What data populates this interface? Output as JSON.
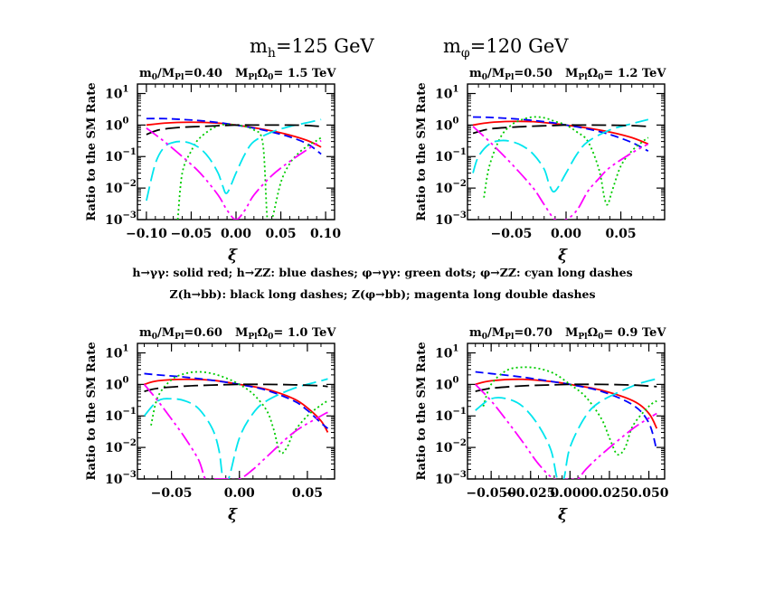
{
  "figure": {
    "title_mh": "m",
    "title_mh_sub": "h",
    "title_mh_val": "=125 GeV",
    "title_mphi": "m",
    "title_mphi_sub": "φ",
    "title_mphi_val": "=120 GeV",
    "legend_line1": "h→γγ: solid red; h→ZZ: blue dashes; φ→γγ: green dots; φ→ZZ: cyan long dashes",
    "legend_line2": "Z(h→bb): black long dashes; Z(φ→bb); magenta long double dashes"
  },
  "series_styles": [
    {
      "key": "h_gg",
      "color": "#ff0000",
      "dash": ""
    },
    {
      "key": "h_ZZ",
      "color": "#0000ff",
      "dash": "9,5"
    },
    {
      "key": "phi_gg",
      "color": "#00cc00",
      "dash": "2,3"
    },
    {
      "key": "phi_ZZ",
      "color": "#00e5ee",
      "dash": "16,6"
    },
    {
      "key": "Z_hbb",
      "color": "#000000",
      "dash": "16,6"
    },
    {
      "key": "Z_phibb",
      "color": "#ff00ff",
      "dash": "16,4,3,4,3,4"
    }
  ],
  "chart_data": [
    {
      "type": "line",
      "log_y": true,
      "title_left_main": "m",
      "title_left_sub": "0",
      "title_left_rest": "/M",
      "title_left_sub2": "Pl",
      "title_left_val": "=0.40",
      "title_right_main": "M",
      "title_right_sub": "Pl",
      "title_right_rest": "Ω",
      "title_right_sub2": "0",
      "title_right_val": "= 1.5 TeV",
      "xlabel": "ξ",
      "ylabel": "Ratio to the SM Rate",
      "xlim": [
        -0.11,
        0.11
      ],
      "ylim": [
        0.001,
        20
      ],
      "xticks": [
        -0.1,
        -0.05,
        0.0,
        0.05,
        0.1
      ],
      "xtick_labels": [
        "−0.10",
        "−0.05",
        "0.00",
        "0.05",
        "0.10"
      ],
      "ytick_exponents": [
        "1",
        "0",
        "−1",
        "−2",
        "−3"
      ],
      "series": [
        {
          "key": "h_gg",
          "x": [
            -0.1,
            -0.08,
            -0.06,
            -0.04,
            -0.02,
            0.0,
            0.02,
            0.04,
            0.06,
            0.08,
            0.095
          ],
          "y": [
            1.0,
            1.15,
            1.22,
            1.22,
            1.15,
            1.0,
            0.82,
            0.65,
            0.48,
            0.32,
            0.2
          ]
        },
        {
          "key": "h_ZZ",
          "x": [
            -0.1,
            -0.08,
            -0.06,
            -0.04,
            -0.02,
            0.0,
            0.02,
            0.04,
            0.06,
            0.08,
            0.095
          ],
          "y": [
            1.6,
            1.6,
            1.5,
            1.38,
            1.2,
            1.0,
            0.8,
            0.6,
            0.42,
            0.25,
            0.12
          ]
        },
        {
          "key": "phi_gg",
          "x": [
            -0.065,
            -0.06,
            -0.05,
            -0.04,
            -0.02,
            0.0,
            0.02,
            0.03,
            0.035,
            0.04,
            0.05,
            0.06,
            0.07,
            0.08,
            0.09,
            0.095
          ],
          "y": [
            0.001,
            0.03,
            0.15,
            0.4,
            0.95,
            1.0,
            0.7,
            0.25,
            0.001,
            0.001,
            0.015,
            0.06,
            0.13,
            0.22,
            0.32,
            0.4
          ]
        },
        {
          "key": "phi_ZZ",
          "x": [
            -0.1,
            -0.09,
            -0.08,
            -0.07,
            -0.06,
            -0.05,
            -0.04,
            -0.03,
            -0.02,
            -0.015,
            -0.01,
            0.0,
            0.01,
            0.02,
            0.04,
            0.06,
            0.08,
            0.095
          ],
          "y": [
            0.004,
            0.06,
            0.2,
            0.28,
            0.3,
            0.26,
            0.18,
            0.09,
            0.03,
            0.012,
            0.007,
            0.03,
            0.12,
            0.3,
            0.6,
            0.9,
            1.2,
            1.5
          ]
        },
        {
          "key": "Z_hbb",
          "x": [
            -0.1,
            -0.09,
            -0.08,
            -0.06,
            -0.04,
            -0.02,
            0.0,
            0.02,
            0.04,
            0.06,
            0.08,
            0.095
          ],
          "y": [
            0.5,
            0.65,
            0.75,
            0.85,
            0.9,
            0.95,
            1.0,
            1.0,
            1.0,
            1.0,
            0.97,
            0.9
          ]
        },
        {
          "key": "Z_phibb",
          "x": [
            -0.1,
            -0.08,
            -0.06,
            -0.04,
            -0.02,
            -0.01,
            0.0,
            0.01,
            0.02,
            0.04,
            0.06,
            0.08,
            0.095
          ],
          "y": [
            0.8,
            0.3,
            0.1,
            0.03,
            0.006,
            0.002,
            0.001,
            0.002,
            0.006,
            0.025,
            0.07,
            0.17,
            0.32
          ]
        }
      ]
    },
    {
      "type": "line",
      "log_y": true,
      "title_left_main": "m",
      "title_left_sub": "0",
      "title_left_rest": "/M",
      "title_left_sub2": "Pl",
      "title_left_val": "=0.50",
      "title_right_main": "M",
      "title_right_sub": "Pl",
      "title_right_rest": "Ω",
      "title_right_sub2": "0",
      "title_right_val": "= 1.2 TeV",
      "xlabel": "ξ",
      "ylabel": "Ratio to the SM Rate",
      "xlim": [
        -0.09,
        0.09
      ],
      "ylim": [
        0.001,
        20
      ],
      "xticks": [
        -0.05,
        0.0,
        0.05
      ],
      "xtick_labels": [
        "−0.05",
        "0.00",
        "0.05"
      ],
      "ytick_exponents": [
        "1",
        "0",
        "−1",
        "−2",
        "−3"
      ],
      "series": [
        {
          "key": "h_gg",
          "x": [
            -0.085,
            -0.07,
            -0.05,
            -0.03,
            -0.01,
            0.0,
            0.02,
            0.04,
            0.06,
            0.075
          ],
          "y": [
            1.0,
            1.2,
            1.3,
            1.28,
            1.1,
            1.0,
            0.8,
            0.6,
            0.4,
            0.25
          ]
        },
        {
          "key": "h_ZZ",
          "x": [
            -0.085,
            -0.07,
            -0.05,
            -0.03,
            -0.01,
            0.0,
            0.02,
            0.04,
            0.06,
            0.075
          ],
          "y": [
            1.8,
            1.75,
            1.6,
            1.4,
            1.15,
            1.0,
            0.75,
            0.5,
            0.28,
            0.15
          ]
        },
        {
          "key": "phi_gg",
          "x": [
            -0.075,
            -0.07,
            -0.06,
            -0.05,
            -0.04,
            -0.03,
            -0.02,
            -0.01,
            0.0,
            0.01,
            0.02,
            0.03,
            0.035,
            0.038,
            0.042,
            0.05,
            0.06,
            0.07,
            0.075
          ],
          "y": [
            0.005,
            0.05,
            0.4,
            1.0,
            1.5,
            1.8,
            1.7,
            1.3,
            1.0,
            0.6,
            0.3,
            0.04,
            0.005,
            0.003,
            0.008,
            0.05,
            0.15,
            0.3,
            0.4
          ]
        },
        {
          "key": "phi_ZZ",
          "x": [
            -0.085,
            -0.08,
            -0.07,
            -0.06,
            -0.05,
            -0.04,
            -0.03,
            -0.02,
            -0.015,
            -0.01,
            0.0,
            0.01,
            0.02,
            0.04,
            0.06,
            0.075
          ],
          "y": [
            0.03,
            0.1,
            0.25,
            0.32,
            0.3,
            0.22,
            0.12,
            0.04,
            0.012,
            0.008,
            0.03,
            0.12,
            0.3,
            0.7,
            1.1,
            1.5
          ]
        },
        {
          "key": "Z_hbb",
          "x": [
            -0.085,
            -0.07,
            -0.05,
            -0.03,
            -0.01,
            0.0,
            0.02,
            0.04,
            0.06,
            0.075
          ],
          "y": [
            0.55,
            0.75,
            0.85,
            0.92,
            0.97,
            1.0,
            1.0,
            0.99,
            0.96,
            0.9
          ]
        },
        {
          "key": "Z_phibb",
          "x": [
            -0.085,
            -0.07,
            -0.05,
            -0.03,
            -0.02,
            -0.01,
            0.0,
            0.01,
            0.02,
            0.03,
            0.04,
            0.06,
            0.075
          ],
          "y": [
            0.9,
            0.3,
            0.06,
            0.01,
            0.003,
            0.001,
            0.001,
            0.002,
            0.008,
            0.02,
            0.045,
            0.13,
            0.25
          ]
        }
      ]
    },
    {
      "type": "line",
      "log_y": true,
      "title_left_main": "m",
      "title_left_sub": "0",
      "title_left_rest": "/M",
      "title_left_sub2": "Pl",
      "title_left_val": "=0.60",
      "title_right_main": "M",
      "title_right_sub": "Pl",
      "title_right_rest": "Ω",
      "title_right_sub2": "0",
      "title_right_val": "= 1.0 TeV",
      "xlabel": "ξ",
      "ylabel": "Ratio to the SM Rate",
      "xlim": [
        -0.075,
        0.07
      ],
      "ylim": [
        0.001,
        20
      ],
      "xticks": [
        -0.05,
        0.0,
        0.05
      ],
      "xtick_labels": [
        "−0.05",
        "0.00",
        "0.05"
      ],
      "ytick_exponents": [
        "1",
        "0",
        "−1",
        "−2",
        "−3"
      ],
      "series": [
        {
          "key": "h_gg",
          "x": [
            -0.07,
            -0.06,
            -0.04,
            -0.02,
            0.0,
            0.02,
            0.04,
            0.05,
            0.06,
            0.065
          ],
          "y": [
            1.0,
            1.3,
            1.45,
            1.35,
            1.0,
            0.7,
            0.35,
            0.18,
            0.07,
            0.03
          ]
        },
        {
          "key": "h_ZZ",
          "x": [
            -0.07,
            -0.06,
            -0.04,
            -0.02,
            0.0,
            0.02,
            0.04,
            0.05,
            0.06,
            0.065
          ],
          "y": [
            2.2,
            2.0,
            1.7,
            1.35,
            1.0,
            0.65,
            0.3,
            0.15,
            0.06,
            0.04
          ]
        },
        {
          "key": "phi_gg",
          "x": [
            -0.065,
            -0.06,
            -0.05,
            -0.04,
            -0.03,
            -0.02,
            -0.01,
            0.0,
            0.01,
            0.02,
            0.025,
            0.03,
            0.035,
            0.04,
            0.05,
            0.06,
            0.065
          ],
          "y": [
            0.05,
            0.4,
            1.4,
            2.2,
            2.5,
            2.2,
            1.6,
            1.0,
            0.5,
            0.15,
            0.04,
            0.007,
            0.01,
            0.03,
            0.1,
            0.22,
            0.3
          ]
        },
        {
          "key": "phi_ZZ",
          "x": [
            -0.07,
            -0.06,
            -0.05,
            -0.04,
            -0.03,
            -0.02,
            -0.015,
            -0.012,
            -0.008,
            0.0,
            0.01,
            0.02,
            0.04,
            0.06,
            0.065
          ],
          "y": [
            0.1,
            0.3,
            0.35,
            0.3,
            0.17,
            0.04,
            0.008,
            0.001,
            0.001,
            0.02,
            0.12,
            0.3,
            0.75,
            1.3,
            1.5
          ]
        },
        {
          "key": "Z_hbb",
          "x": [
            -0.07,
            -0.06,
            -0.04,
            -0.02,
            0.0,
            0.02,
            0.04,
            0.06,
            0.065
          ],
          "y": [
            0.6,
            0.75,
            0.88,
            0.95,
            1.0,
            1.0,
            0.97,
            0.9,
            0.85
          ]
        },
        {
          "key": "Z_phibb",
          "x": [
            -0.07,
            -0.06,
            -0.05,
            -0.04,
            -0.03,
            -0.025,
            -0.02,
            -0.01,
            0.0,
            0.01,
            0.02,
            0.04,
            0.06,
            0.065
          ],
          "y": [
            1.0,
            0.3,
            0.08,
            0.02,
            0.004,
            0.001,
            0.001,
            0.001,
            0.001,
            0.002,
            0.005,
            0.03,
            0.1,
            0.13
          ]
        }
      ]
    },
    {
      "type": "line",
      "log_y": true,
      "title_left_main": "m",
      "title_left_sub": "0",
      "title_left_rest": "/M",
      "title_left_sub2": "Pl",
      "title_left_val": "=0.70",
      "title_right_main": "M",
      "title_right_sub": "Pl",
      "title_right_rest": "Ω",
      "title_right_sub2": "0",
      "title_right_val": "= 0.9 TeV",
      "xlabel": "ξ",
      "ylabel": "Ratio to the SM Rate",
      "xlim": [
        -0.065,
        0.06
      ],
      "ylim": [
        0.001,
        20
      ],
      "xticks": [
        -0.05,
        -0.025,
        0.0,
        0.025,
        0.05
      ],
      "xtick_labels": [
        "−0.050",
        "−0.025",
        "0.000",
        "0.025",
        "0.050"
      ],
      "ytick_exponents": [
        "1",
        "0",
        "−1",
        "−2",
        "−3"
      ],
      "series": [
        {
          "key": "h_gg",
          "x": [
            -0.06,
            -0.05,
            -0.03,
            -0.01,
            0.0,
            0.02,
            0.04,
            0.05,
            0.055
          ],
          "y": [
            1.0,
            1.3,
            1.45,
            1.2,
            1.0,
            0.65,
            0.3,
            0.12,
            0.04
          ]
        },
        {
          "key": "h_ZZ",
          "x": [
            -0.06,
            -0.05,
            -0.03,
            -0.01,
            0.0,
            0.02,
            0.04,
            0.05,
            0.055
          ],
          "y": [
            2.5,
            2.2,
            1.7,
            1.2,
            1.0,
            0.6,
            0.22,
            0.06,
            0.008
          ]
        },
        {
          "key": "phi_gg",
          "x": [
            -0.055,
            -0.05,
            -0.04,
            -0.03,
            -0.02,
            -0.01,
            0.0,
            0.01,
            0.02,
            0.025,
            0.03,
            0.035,
            0.04,
            0.05,
            0.055
          ],
          "y": [
            0.2,
            1.0,
            2.8,
            3.5,
            3.2,
            2.2,
            1.0,
            0.4,
            0.08,
            0.02,
            0.006,
            0.01,
            0.05,
            0.2,
            0.3
          ]
        },
        {
          "key": "phi_ZZ",
          "x": [
            -0.06,
            -0.05,
            -0.04,
            -0.03,
            -0.02,
            -0.012,
            -0.008,
            -0.004,
            0.0,
            0.01,
            0.02,
            0.04,
            0.05,
            0.055
          ],
          "y": [
            0.15,
            0.35,
            0.35,
            0.2,
            0.05,
            0.008,
            0.001,
            0.001,
            0.01,
            0.1,
            0.3,
            0.9,
            1.3,
            1.5
          ]
        },
        {
          "key": "Z_hbb",
          "x": [
            -0.06,
            -0.05,
            -0.03,
            -0.01,
            0.0,
            0.02,
            0.04,
            0.055
          ],
          "y": [
            0.6,
            0.75,
            0.9,
            0.97,
            1.0,
            1.0,
            0.95,
            0.85
          ]
        },
        {
          "key": "Z_phibb",
          "x": [
            -0.06,
            -0.05,
            -0.04,
            -0.03,
            -0.02,
            -0.01,
            0.0,
            0.005,
            0.01,
            0.02,
            0.04,
            0.055
          ],
          "y": [
            1.0,
            0.3,
            0.07,
            0.015,
            0.003,
            0.001,
            0.001,
            0.001,
            0.002,
            0.006,
            0.04,
            0.12
          ]
        }
      ]
    }
  ]
}
